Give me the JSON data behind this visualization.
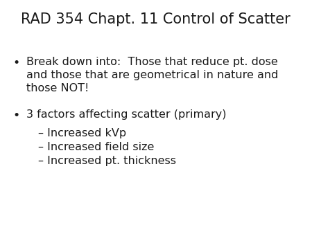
{
  "title": "RAD 354 Chapt. 11 Control of Scatter",
  "title_fontsize": 15,
  "background_color": "#ffffff",
  "text_color": "#1a1a1a",
  "bullet1_line1": "Break down into:  Those that reduce pt. dose",
  "bullet1_line2": "and those that are geometrical in nature and",
  "bullet1_line3": "those NOT!",
  "bullet2": "3 factors affecting scatter (primary)",
  "sub1": "– Increased kVp",
  "sub2": "– Increased field size",
  "sub3": "– Increased pt. thickness",
  "bullet_fontsize": 11.5,
  "sub_fontsize": 11.5,
  "bullet_symbol": "•",
  "font_family": "DejaVu Sans"
}
